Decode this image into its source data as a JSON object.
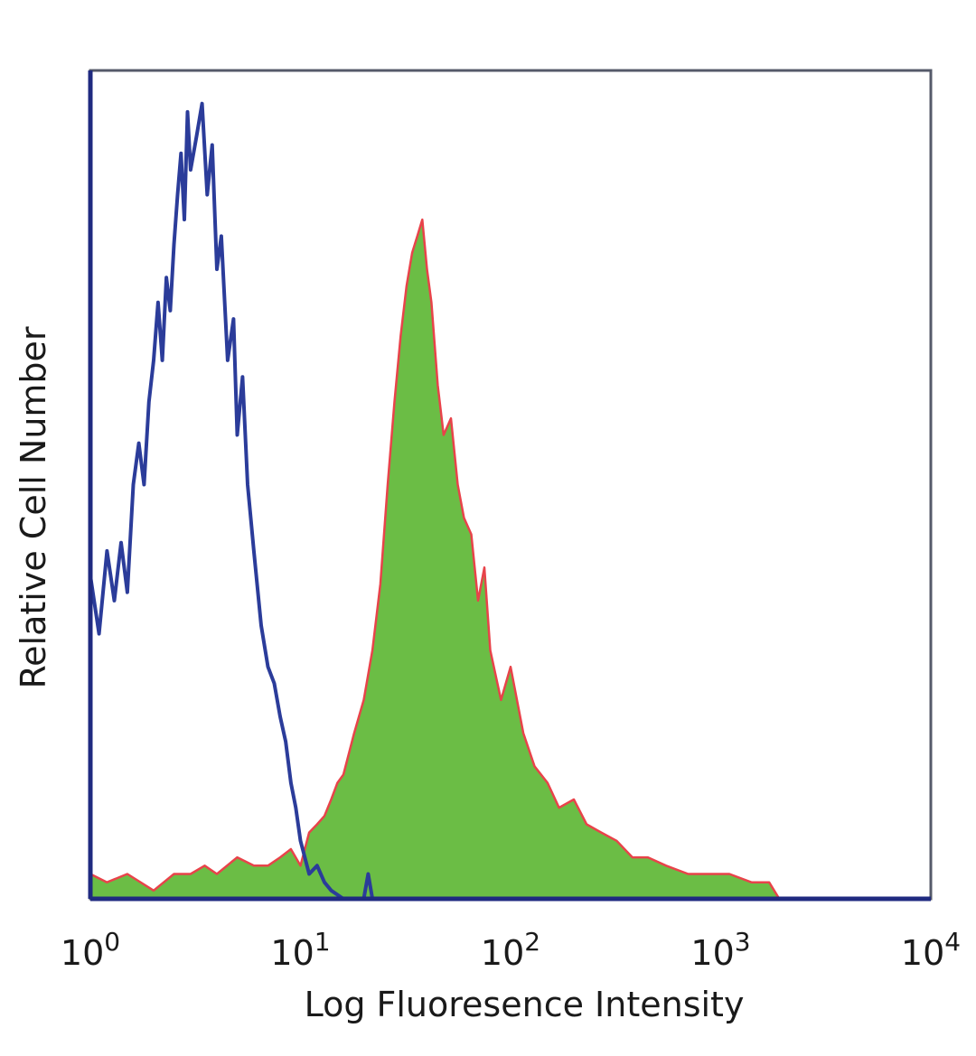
{
  "chart_data": {
    "type": "area",
    "xlabel": "Log Fluoresence Intensity",
    "ylabel": "Relative Cell Number",
    "x_scale": "log",
    "xlim": [
      1,
      10000
    ],
    "ylim": [
      0,
      1
    ],
    "x_ticks": [
      {
        "value": 1,
        "base": "10",
        "exp": "0"
      },
      {
        "value": 10,
        "base": "10",
        "exp": "1"
      },
      {
        "value": 100,
        "base": "10",
        "exp": "2"
      },
      {
        "value": 1000,
        "base": "10",
        "exp": "3"
      },
      {
        "value": 10000,
        "base": "10",
        "exp": "4"
      }
    ],
    "grid": false,
    "series": [
      {
        "color": "#2b3c9a",
        "style": "outline",
        "x": [
          1.0,
          1.1,
          1.2,
          1.3,
          1.4,
          1.5,
          1.6,
          1.7,
          1.8,
          1.9,
          2.0,
          2.1,
          2.2,
          2.3,
          2.4,
          2.5,
          2.6,
          2.7,
          2.8,
          2.9,
          3.0,
          3.2,
          3.4,
          3.6,
          3.8,
          4.0,
          4.2,
          4.5,
          4.8,
          5.0,
          5.3,
          5.6,
          6.0,
          6.5,
          7.0,
          7.5,
          8.0,
          8.5,
          9.0,
          9.5,
          10.0,
          11.0,
          12.0,
          13.0,
          14.0,
          16.0,
          18.0,
          20.0,
          21.0,
          22.0
        ],
        "values": [
          0.39,
          0.32,
          0.42,
          0.36,
          0.43,
          0.37,
          0.5,
          0.55,
          0.5,
          0.6,
          0.65,
          0.72,
          0.65,
          0.75,
          0.71,
          0.79,
          0.85,
          0.9,
          0.82,
          0.95,
          0.88,
          0.92,
          0.96,
          0.85,
          0.91,
          0.76,
          0.8,
          0.65,
          0.7,
          0.56,
          0.63,
          0.5,
          0.42,
          0.33,
          0.28,
          0.26,
          0.22,
          0.19,
          0.14,
          0.11,
          0.07,
          0.03,
          0.04,
          0.02,
          0.01,
          0.0,
          0.0,
          0.0,
          0.03,
          0.0
        ]
      },
      {
        "color": "#6bbd45",
        "edge_color": "#e8434a",
        "style": "filled",
        "x": [
          1.0,
          1.2,
          1.5,
          2.0,
          2.5,
          3.0,
          3.5,
          4.0,
          5.0,
          6.0,
          7.0,
          8.0,
          9.0,
          10.0,
          11.0,
          12.0,
          13.0,
          14.0,
          15.0,
          16.0,
          18.0,
          20.0,
          22.0,
          24.0,
          26.0,
          28.0,
          30.0,
          32.0,
          34.0,
          36.0,
          38.0,
          40.0,
          42.0,
          45.0,
          48.0,
          52.0,
          56.0,
          60.0,
          65.0,
          70.0,
          75.0,
          80.0,
          90.0,
          100.0,
          115.0,
          130.0,
          150.0,
          170.0,
          200.0,
          230.0,
          270.0,
          320.0,
          380.0,
          450.0,
          550.0,
          700.0,
          900.0,
          1100.0,
          1400.0,
          1700.0,
          1900.0
        ],
        "values": [
          0.03,
          0.02,
          0.03,
          0.01,
          0.03,
          0.03,
          0.04,
          0.03,
          0.05,
          0.04,
          0.04,
          0.05,
          0.06,
          0.04,
          0.08,
          0.09,
          0.1,
          0.12,
          0.14,
          0.15,
          0.2,
          0.24,
          0.3,
          0.38,
          0.5,
          0.6,
          0.68,
          0.74,
          0.78,
          0.8,
          0.82,
          0.76,
          0.72,
          0.62,
          0.56,
          0.58,
          0.5,
          0.46,
          0.44,
          0.36,
          0.4,
          0.3,
          0.24,
          0.28,
          0.2,
          0.16,
          0.14,
          0.11,
          0.12,
          0.09,
          0.08,
          0.07,
          0.05,
          0.05,
          0.04,
          0.03,
          0.03,
          0.03,
          0.02,
          0.02,
          0.0
        ]
      }
    ]
  }
}
